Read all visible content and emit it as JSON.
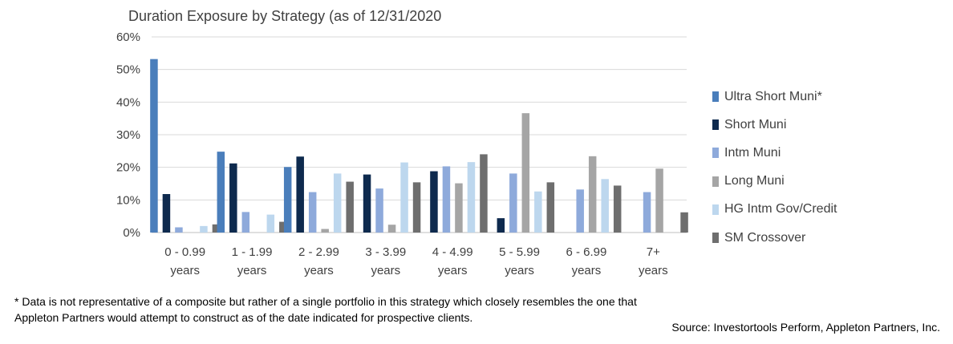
{
  "chart_data": {
    "type": "bar",
    "title": "Duration Exposure by Strategy (as of 12/31/2020",
    "categories": [
      [
        "0 - 0.99",
        "years"
      ],
      [
        "1 - 1.99",
        "years"
      ],
      [
        "2 - 2.99",
        "years"
      ],
      [
        "3 - 3.99",
        "years"
      ],
      [
        "4 - 4.99",
        "years"
      ],
      [
        "5 - 5.99",
        "years"
      ],
      [
        "6 - 6.99",
        "years"
      ],
      [
        "7+",
        "years"
      ]
    ],
    "yticks": [
      "0%",
      "10%",
      "20%",
      "30%",
      "40%",
      "50%",
      "60%"
    ],
    "ylim": [
      0,
      60
    ],
    "grid": true,
    "legend_position": "right",
    "series": [
      {
        "name": "Ultra Short Muni*",
        "color": "#4A7EBB",
        "values": [
          53.2,
          24.8,
          20.1,
          0,
          0,
          0,
          0,
          0
        ]
      },
      {
        "name": "Short Muni",
        "color": "#0E2A4E",
        "values": [
          11.8,
          21.2,
          23.3,
          17.8,
          18.8,
          4.4,
          0,
          0
        ]
      },
      {
        "name": "Intm Muni",
        "color": "#8EAADB",
        "values": [
          1.6,
          6.3,
          12.4,
          13.5,
          20.3,
          18.1,
          13.2,
          12.4
        ]
      },
      {
        "name": "Long Muni",
        "color": "#A5A5A5",
        "values": [
          0,
          0,
          1.1,
          2.4,
          15.1,
          36.6,
          23.4,
          19.6
        ]
      },
      {
        "name": "HG Intm Gov/Credit",
        "color": "#BDD7EE",
        "values": [
          2.0,
          5.5,
          18.1,
          21.5,
          21.6,
          12.6,
          16.4,
          0
        ]
      },
      {
        "name": "SM Crossover",
        "color": "#6E6E6E",
        "values": [
          2.5,
          3.3,
          15.6,
          15.4,
          24.0,
          15.4,
          14.4,
          6.2
        ]
      }
    ]
  },
  "footnote": "* Data is not representative of a composite but rather of a single portfolio in this strategy which closely resembles the one that Appleton Partners would attempt to construct as of the date indicated for prospective clients.",
  "source": "Source: Investortools Perform, Appleton Partners, Inc."
}
